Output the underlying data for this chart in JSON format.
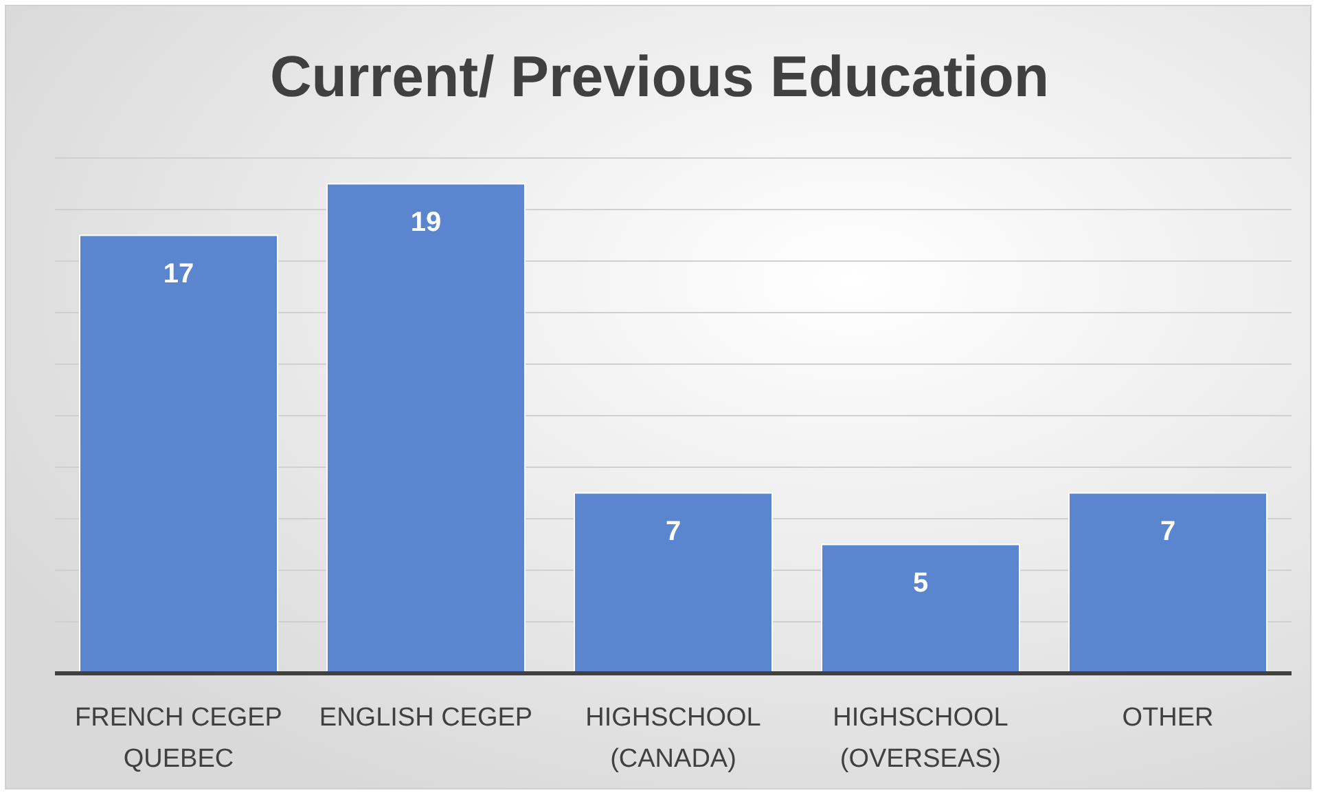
{
  "chart_data": {
    "type": "bar",
    "title": "Current/ Previous Education",
    "categories": [
      "FRENCH CEGEP QUEBEC",
      "ENGLISH CEGEP",
      "HIGHSCHOOL (CANADA)",
      "HIGHSCHOOL (OVERSEAS)",
      "OTHER"
    ],
    "values": [
      17,
      19,
      7,
      5,
      7
    ],
    "color": "#5b86cf",
    "data_labels": true,
    "ylim": [
      0,
      20
    ],
    "yticks": [
      {
        "value": 0,
        "label": null
      },
      {
        "value": 2,
        "label": null
      },
      {
        "value": 4,
        "label": null
      },
      {
        "value": 6,
        "label": null
      },
      {
        "value": 8,
        "label": null
      },
      {
        "value": 10,
        "label": null
      },
      {
        "value": 12,
        "label": null
      },
      {
        "value": 14,
        "label": null
      },
      {
        "value": 16,
        "label": null
      },
      {
        "value": 18,
        "label": null
      },
      {
        "value": 20,
        "label": null
      }
    ],
    "grid": "y"
  }
}
